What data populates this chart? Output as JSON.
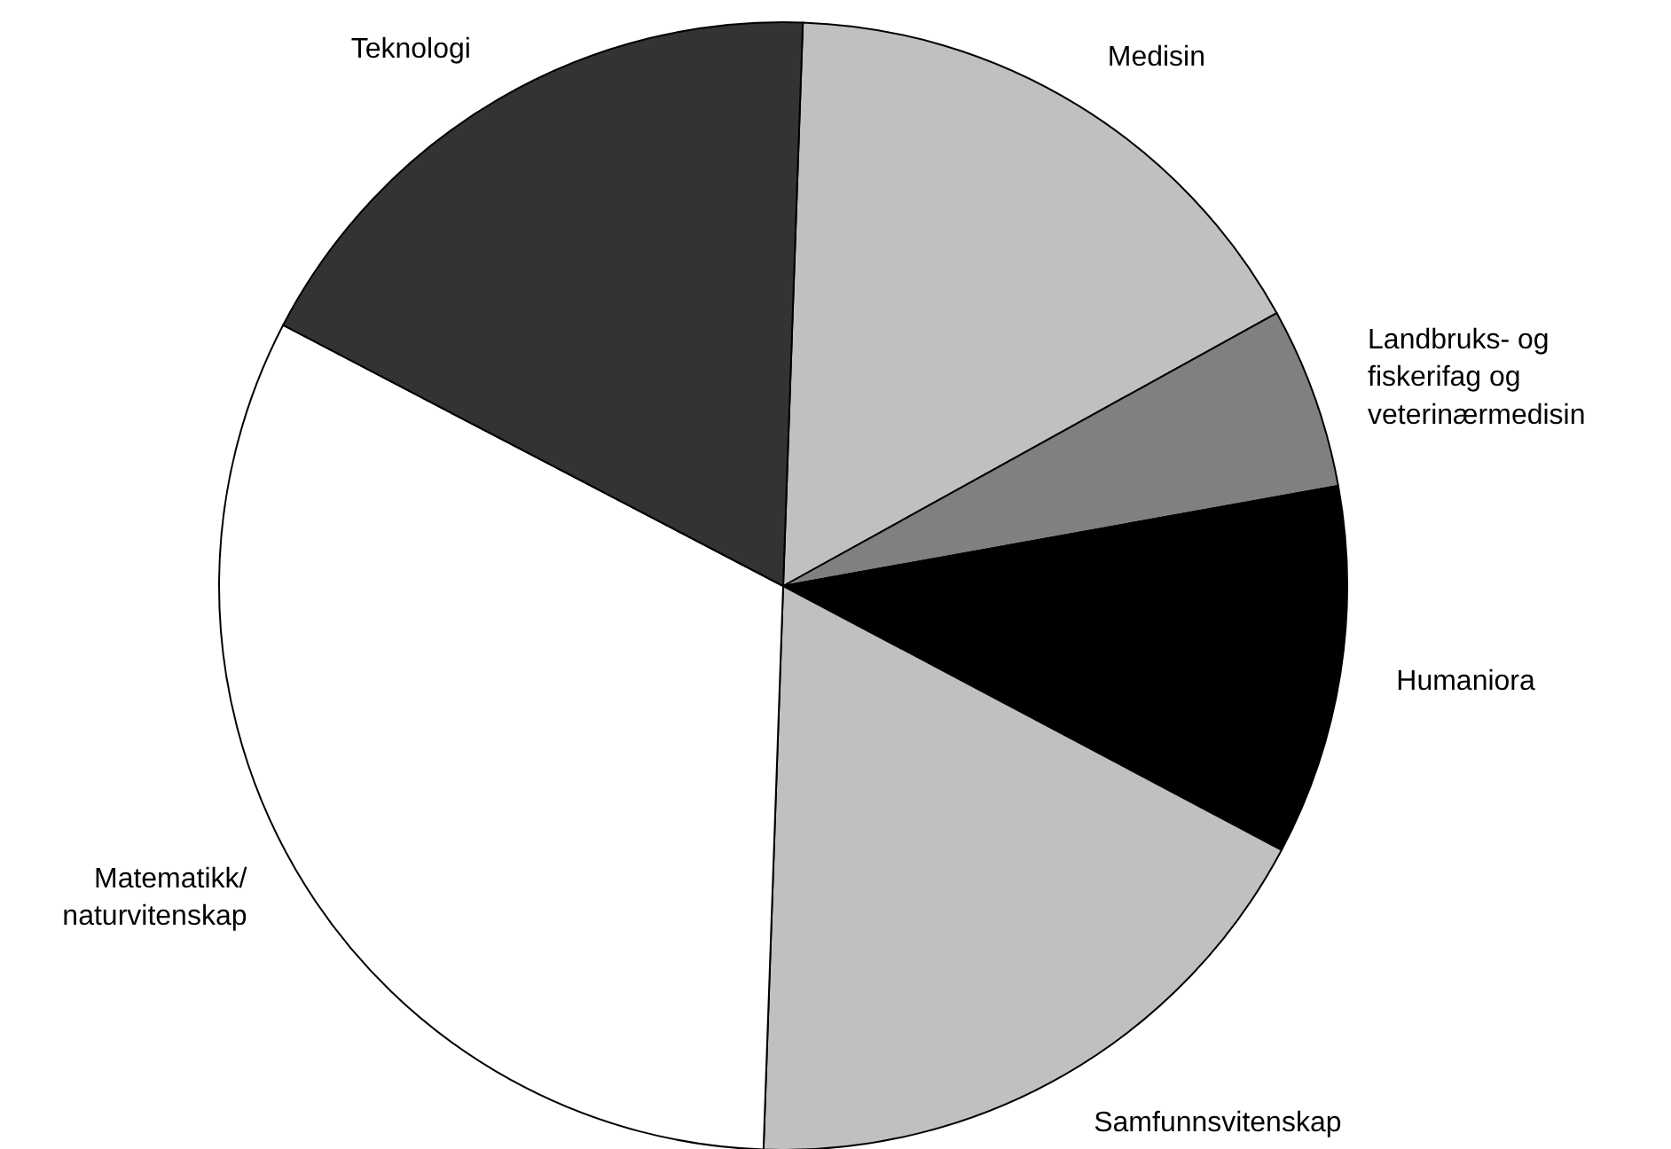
{
  "chart_data": {
    "type": "pie",
    "categories": [
      "Medisin",
      "Landbruks- og\nfiskerifag og\nveterinærmedisin",
      "Humaniora",
      "Samfunnsvitenskap",
      "Matematikk/\nnaturvitenskap",
      "Teknologi"
    ],
    "values": [
      16.4,
      5.2,
      10.6,
      17.8,
      32.1,
      17.9
    ],
    "colors": [
      "#c0c0c0",
      "#808080",
      "#000000",
      "#c0c0c0",
      "#ffffff",
      "#333333"
    ]
  }
}
